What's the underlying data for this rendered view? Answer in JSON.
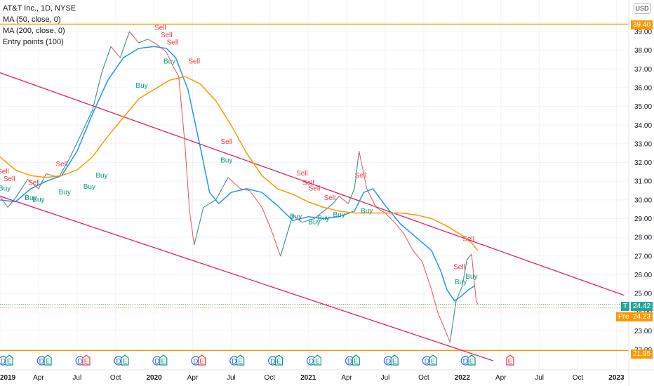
{
  "legend": {
    "symbol": "AT&T Inc., 1D, NYSE",
    "ma50": "MA (50, close, 0)",
    "ma200": "MA (200, close, 0)",
    "strategy": "Entry points (100)"
  },
  "currency": "USD",
  "price_tags": {
    "resistance": "39.40",
    "last": "24.42",
    "last_label": "T",
    "pre": "24.23",
    "pre_label": "Pre",
    "support": "21.95"
  },
  "colors": {
    "up": "#26a69a",
    "down": "#ef5350",
    "ma50": "#2196f3",
    "ma200": "#ff9800",
    "levels": "#ff9800",
    "channel": "#e91e63",
    "buy": "#089981",
    "sell": "#f23645"
  },
  "chart_data": {
    "type": "line",
    "title": "AT&T Inc., 1D, NYSE",
    "xlabel": "",
    "ylabel": "",
    "ylim": [
      21.4,
      39.9
    ],
    "x_ticks": [
      "2019",
      "Apr",
      "Jul",
      "Oct",
      "2020",
      "Apr",
      "Jul",
      "Oct",
      "2021",
      "Apr",
      "Jul",
      "Oct",
      "2022",
      "Apr",
      "Jul",
      "Oct",
      "2023"
    ],
    "y_ticks": [
      "22.00",
      "23.00",
      "24.00",
      "25.00",
      "26.00",
      "27.00",
      "28.00",
      "29.00",
      "30.00",
      "31.00",
      "32.00",
      "33.00",
      "34.00",
      "35.00",
      "36.00",
      "37.00",
      "38.00",
      "39.00"
    ],
    "series": [
      {
        "name": "AT&T Inc., 1D, NYSE",
        "x": [
          2019.0,
          2019.05,
          2019.1,
          2019.18,
          2019.25,
          2019.3,
          2019.38,
          2019.45,
          2019.52,
          2019.6,
          2019.66,
          2019.72,
          2019.78,
          2019.84,
          2019.9,
          2019.96,
          2020.02,
          2020.08,
          2020.12,
          2020.16,
          2020.2,
          2020.23,
          2020.26,
          2020.32,
          2020.4,
          2020.48,
          2020.56,
          2020.62,
          2020.7,
          2020.76,
          2020.82,
          2020.9,
          2020.96,
          2021.04,
          2021.1,
          2021.16,
          2021.2,
          2021.26,
          2021.3,
          2021.33,
          2021.38,
          2021.44,
          2021.5,
          2021.56,
          2021.62,
          2021.68,
          2021.74,
          2021.8,
          2021.84,
          2021.88,
          2021.92,
          2021.96,
          2022.0,
          2022.03,
          2022.06,
          2022.09,
          2022.1
        ],
        "values": [
          30.2,
          29.6,
          30.1,
          31.1,
          30.6,
          31.4,
          31.2,
          32.2,
          33.4,
          34.8,
          36.8,
          38.2,
          37.6,
          39.0,
          38.4,
          38.6,
          38.3,
          37.9,
          37.2,
          36.6,
          33.0,
          29.4,
          27.6,
          29.6,
          30.0,
          31.2,
          30.6,
          30.5,
          29.6,
          28.4,
          27.0,
          29.2,
          28.8,
          29.0,
          29.4,
          29.8,
          30.2,
          29.8,
          30.6,
          32.6,
          30.6,
          29.6,
          29.3,
          28.8,
          28.2,
          27.3,
          26.7,
          25.2,
          24.0,
          23.2,
          22.4,
          24.6,
          25.4,
          26.8,
          27.1,
          24.6,
          24.42
        ]
      },
      {
        "name": "MA (50, close, 0)",
        "x": [
          2019.0,
          2019.1,
          2019.2,
          2019.3,
          2019.4,
          2019.5,
          2019.6,
          2019.7,
          2019.8,
          2019.9,
          2020.0,
          2020.08,
          2020.14,
          2020.22,
          2020.3,
          2020.36,
          2020.42,
          2020.5,
          2020.6,
          2020.7,
          2020.8,
          2020.9,
          2021.0,
          2021.1,
          2021.2,
          2021.3,
          2021.36,
          2021.42,
          2021.5,
          2021.6,
          2021.7,
          2021.8,
          2021.86,
          2021.9,
          2021.95,
          2022.0,
          2022.04,
          2022.08
        ],
        "values": [
          30.0,
          29.9,
          30.6,
          31.0,
          31.3,
          32.6,
          34.6,
          36.4,
          37.6,
          38.1,
          38.2,
          38.1,
          37.6,
          35.9,
          32.8,
          30.4,
          29.8,
          30.4,
          30.6,
          30.4,
          29.7,
          28.9,
          29.1,
          29.0,
          29.1,
          29.4,
          30.4,
          30.6,
          29.7,
          28.7,
          28.0,
          27.3,
          26.2,
          25.2,
          24.6,
          24.9,
          25.2,
          25.4
        ]
      },
      {
        "name": "MA (200, close, 0)",
        "x": [
          2019.0,
          2019.1,
          2019.2,
          2019.3,
          2019.4,
          2019.5,
          2019.6,
          2019.7,
          2019.8,
          2019.9,
          2020.0,
          2020.1,
          2020.2,
          2020.3,
          2020.4,
          2020.5,
          2020.6,
          2020.7,
          2020.8,
          2020.9,
          2021.0,
          2021.1,
          2021.2,
          2021.3,
          2021.4,
          2021.5,
          2021.6,
          2021.7,
          2021.8,
          2021.9,
          2022.0,
          2022.06,
          2022.1
        ],
        "values": [
          32.3,
          31.6,
          31.3,
          31.2,
          31.3,
          31.6,
          32.3,
          33.4,
          34.4,
          35.4,
          35.9,
          36.4,
          36.6,
          36.2,
          35.3,
          34.0,
          32.5,
          31.3,
          30.6,
          30.3,
          29.9,
          29.6,
          29.4,
          29.3,
          29.3,
          29.3,
          29.3,
          29.2,
          29.0,
          28.6,
          28.1,
          27.7,
          27.3
        ]
      }
    ],
    "levels": [
      39.4,
      21.95
    ],
    "channel": {
      "upper": {
        "x": [
          2019.0,
          2023.05
        ],
        "values": [
          36.8,
          24.9
        ]
      },
      "lower": {
        "x": [
          2019.0,
          2022.2
        ],
        "values": [
          30.2,
          21.4
        ]
      }
    },
    "signals": [
      {
        "type": "sell",
        "label": "Sell",
        "x": 2019.02,
        "y": 31.4
      },
      {
        "type": "sell",
        "label": "Sell",
        "x": 2019.06,
        "y": 31.0
      },
      {
        "type": "buy",
        "label": "Buy",
        "x": 2019.03,
        "y": 30.5
      },
      {
        "type": "buy",
        "label": "Buy",
        "x": 2019.2,
        "y": 30.0
      },
      {
        "type": "buy",
        "label": "Buy",
        "x": 2019.25,
        "y": 29.9
      },
      {
        "type": "sell",
        "label": "Sell",
        "x": 2019.22,
        "y": 30.8
      },
      {
        "type": "sell",
        "label": "Sell",
        "x": 2019.4,
        "y": 31.8
      },
      {
        "type": "buy",
        "label": "Buy",
        "x": 2019.42,
        "y": 30.3
      },
      {
        "type": "buy",
        "label": "Buy",
        "x": 2019.58,
        "y": 30.6
      },
      {
        "type": "buy",
        "label": "Buy",
        "x": 2019.66,
        "y": 31.2
      },
      {
        "type": "buy",
        "label": "Buy",
        "x": 2019.92,
        "y": 36.0
      },
      {
        "type": "sell",
        "label": "Sell",
        "x": 2020.04,
        "y": 39.1
      },
      {
        "type": "sell",
        "label": "Sell",
        "x": 2020.08,
        "y": 38.7
      },
      {
        "type": "sell",
        "label": "Sell",
        "x": 2020.12,
        "y": 38.3
      },
      {
        "type": "buy",
        "label": "Buy",
        "x": 2020.1,
        "y": 37.3
      },
      {
        "type": "sell",
        "label": "Sell",
        "x": 2020.26,
        "y": 37.3
      },
      {
        "type": "sell",
        "label": "Sell",
        "x": 2020.47,
        "y": 33.0
      },
      {
        "type": "buy",
        "label": "Buy",
        "x": 2020.47,
        "y": 32.0
      },
      {
        "type": "sell",
        "label": "Sell",
        "x": 2020.96,
        "y": 31.3
      },
      {
        "type": "sell",
        "label": "Sell",
        "x": 2021.0,
        "y": 30.8
      },
      {
        "type": "sell",
        "label": "Sell",
        "x": 2021.04,
        "y": 30.5
      },
      {
        "type": "buy",
        "label": "Buy",
        "x": 2020.92,
        "y": 29.0
      },
      {
        "type": "buy",
        "label": "Buy",
        "x": 2021.04,
        "y": 28.7
      },
      {
        "type": "buy",
        "label": "Buy",
        "x": 2021.1,
        "y": 28.9
      },
      {
        "type": "sell",
        "label": "Sell",
        "x": 2021.14,
        "y": 30.0
      },
      {
        "type": "buy",
        "label": "Buy",
        "x": 2021.2,
        "y": 29.1
      },
      {
        "type": "sell",
        "label": "Sell",
        "x": 2021.34,
        "y": 31.2
      },
      {
        "type": "buy",
        "label": "Buy",
        "x": 2021.38,
        "y": 29.3
      },
      {
        "type": "sell",
        "label": "Sell",
        "x": 2022.04,
        "y": 27.8
      },
      {
        "type": "sell",
        "label": "Sell",
        "x": 2021.98,
        "y": 26.3
      },
      {
        "type": "buy",
        "label": "Buy",
        "x": 2021.99,
        "y": 25.5
      },
      {
        "type": "buy",
        "label": "Buy",
        "x": 2022.06,
        "y": 25.8
      }
    ],
    "events": [
      {
        "type": "dividend",
        "label": "D",
        "x": 2019.02
      },
      {
        "type": "earnings",
        "label": "E",
        "x": 2019.06
      },
      {
        "type": "dividend",
        "label": "D",
        "x": 2019.27
      },
      {
        "type": "earnings",
        "label": "E",
        "x": 2019.31
      },
      {
        "type": "dividend",
        "label": "D",
        "x": 2019.52
      },
      {
        "type": "earnings",
        "label": "E",
        "x": 2019.56,
        "negative": true
      },
      {
        "type": "dividend",
        "label": "D",
        "x": 2019.77
      },
      {
        "type": "earnings",
        "label": "E",
        "x": 2019.81
      },
      {
        "type": "dividend",
        "label": "D",
        "x": 2020.02
      },
      {
        "type": "earnings",
        "label": "E",
        "x": 2020.06
      },
      {
        "type": "dividend",
        "label": "D",
        "x": 2020.27
      },
      {
        "type": "earnings",
        "label": "E",
        "x": 2020.31,
        "negative": true
      },
      {
        "type": "dividend",
        "label": "D",
        "x": 2020.52
      },
      {
        "type": "earnings",
        "label": "E",
        "x": 2020.56
      },
      {
        "type": "dividend",
        "label": "D",
        "x": 2020.77
      },
      {
        "type": "earnings",
        "label": "E",
        "x": 2020.81
      },
      {
        "type": "dividend",
        "label": "D",
        "x": 2021.02
      },
      {
        "type": "earnings",
        "label": "E",
        "x": 2021.06
      },
      {
        "type": "dividend",
        "label": "D",
        "x": 2021.27
      },
      {
        "type": "earnings",
        "label": "E",
        "x": 2021.31
      },
      {
        "type": "dividend",
        "label": "D",
        "x": 2021.52
      },
      {
        "type": "earnings",
        "label": "E",
        "x": 2021.56
      },
      {
        "type": "dividend",
        "label": "D",
        "x": 2021.77
      },
      {
        "type": "earnings",
        "label": "E",
        "x": 2021.81
      },
      {
        "type": "dividend",
        "label": "D",
        "x": 2022.02
      },
      {
        "type": "earnings",
        "label": "E",
        "x": 2022.06
      },
      {
        "type": "earnings",
        "label": "E",
        "x": 2022.31,
        "upcoming": true
      }
    ]
  }
}
